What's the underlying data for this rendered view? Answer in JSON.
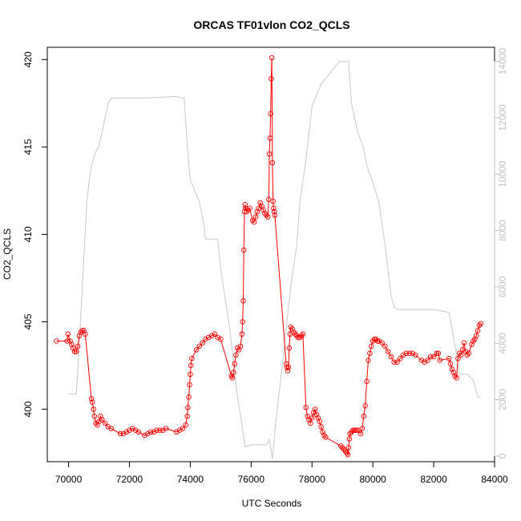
{
  "chart_data": {
    "type": "line",
    "title": "ORCAS TF01vlon CO2_QCLS",
    "xlabel": "UTC Seconds",
    "ylabel": "CO2_QCLS",
    "xlim": [
      69300,
      84000
    ],
    "ylim": [
      397,
      420.7
    ],
    "y2lim": [
      -200,
      14500
    ],
    "x_ticks": [
      70000,
      72000,
      74000,
      76000,
      78000,
      80000,
      82000,
      84000
    ],
    "y_ticks": [
      400,
      405,
      410,
      415,
      420
    ],
    "y2_ticks": [
      0,
      2000,
      4000,
      6000,
      8000,
      10000,
      12000,
      14000
    ],
    "grid": false,
    "colors": {
      "co2": "#ff0000",
      "altitude": "#c8c8c8",
      "axis": "#000000",
      "right_axis": "#c0c0c0"
    },
    "series": [
      {
        "role": "co2",
        "style": "line-with-circles",
        "axis": "left",
        "points": [
          [
            69600,
            403.9
          ],
          [
            69950,
            403.9
          ],
          [
            69980,
            404.3
          ],
          [
            70050,
            403.9
          ],
          [
            70100,
            403.7
          ],
          [
            70150,
            403.5
          ],
          [
            70200,
            403.3
          ],
          [
            70250,
            403.3
          ],
          [
            70300,
            403.6
          ],
          [
            70350,
            404.2
          ],
          [
            70400,
            404.4
          ],
          [
            70450,
            404.5
          ],
          [
            70500,
            404.5
          ],
          [
            70550,
            404.3
          ],
          [
            70750,
            400.6
          ],
          [
            70780,
            400.4
          ],
          [
            70820,
            400.0
          ],
          [
            70850,
            399.6
          ],
          [
            70900,
            399.2
          ],
          [
            70950,
            399.1
          ],
          [
            71000,
            399.3
          ],
          [
            71050,
            399.6
          ],
          [
            71100,
            399.4
          ],
          [
            71200,
            399.2
          ],
          [
            71300,
            399.0
          ],
          [
            71400,
            398.9
          ],
          [
            71700,
            398.6
          ],
          [
            71800,
            398.6
          ],
          [
            71900,
            398.7
          ],
          [
            72000,
            398.8
          ],
          [
            72100,
            398.9
          ],
          [
            72200,
            398.8
          ],
          [
            72300,
            398.7
          ],
          [
            72500,
            398.5
          ],
          [
            72600,
            398.6
          ],
          [
            72700,
            398.7
          ],
          [
            72800,
            398.7
          ],
          [
            72900,
            398.8
          ],
          [
            73000,
            398.8
          ],
          [
            73100,
            398.8
          ],
          [
            73200,
            398.9
          ],
          [
            73550,
            398.7
          ],
          [
            73650,
            398.8
          ],
          [
            73750,
            398.9
          ],
          [
            73850,
            399.1
          ],
          [
            73900,
            399.6
          ],
          [
            73920,
            400.1
          ],
          [
            73950,
            400.7
          ],
          [
            73980,
            401.4
          ],
          [
            74000,
            402.0
          ],
          [
            74020,
            402.5
          ],
          [
            74050,
            402.9
          ],
          [
            74200,
            403.4
          ],
          [
            74300,
            403.6
          ],
          [
            74400,
            403.8
          ],
          [
            74500,
            404.0
          ],
          [
            74600,
            404.1
          ],
          [
            74700,
            404.2
          ],
          [
            74800,
            404.3
          ],
          [
            74900,
            404.1
          ],
          [
            75000,
            404.0
          ],
          [
            75350,
            401.9
          ],
          [
            75380,
            401.8
          ],
          [
            75420,
            402.1
          ],
          [
            75460,
            402.6
          ],
          [
            75500,
            403.1
          ],
          [
            75550,
            403.5
          ],
          [
            75600,
            403.4
          ],
          [
            75650,
            403.6
          ],
          [
            75700,
            404.3
          ],
          [
            75720,
            405.0
          ],
          [
            75740,
            406.2
          ],
          [
            75760,
            409.1
          ],
          [
            75780,
            411.3
          ],
          [
            75800,
            411.7
          ],
          [
            75820,
            411.5
          ],
          [
            75850,
            411.3
          ],
          [
            75900,
            411.4
          ],
          [
            75950,
            411.5
          ],
          [
            76050,
            410.8
          ],
          [
            76100,
            410.7
          ],
          [
            76150,
            411.0
          ],
          [
            76200,
            411.3
          ],
          [
            76250,
            411.5
          ],
          [
            76300,
            411.8
          ],
          [
            76350,
            411.6
          ],
          [
            76400,
            411.4
          ],
          [
            76450,
            411.2
          ],
          [
            76500,
            411.1
          ],
          [
            76550,
            411.0
          ],
          [
            76580,
            412.0
          ],
          [
            76600,
            414.6
          ],
          [
            76620,
            415.5
          ],
          [
            76640,
            416.9
          ],
          [
            76660,
            418.9
          ],
          [
            76680,
            420.1
          ],
          [
            76700,
            414.1
          ],
          [
            76720,
            411.9
          ],
          [
            76740,
            411.5
          ],
          [
            76760,
            411.3
          ],
          [
            76780,
            411.1
          ],
          [
            77150,
            402.6
          ],
          [
            77180,
            402.4
          ],
          [
            77200,
            402.2
          ],
          [
            77230,
            402.4
          ],
          [
            77250,
            403.5
          ],
          [
            77280,
            404.3
          ],
          [
            77300,
            404.7
          ],
          [
            77350,
            404.6
          ],
          [
            77400,
            404.4
          ],
          [
            77450,
            404.3
          ],
          [
            77500,
            404.2
          ],
          [
            77550,
            404.1
          ],
          [
            77600,
            404.1
          ],
          [
            77650,
            404.2
          ],
          [
            77700,
            404.3
          ],
          [
            77800,
            400.1
          ],
          [
            77850,
            399.6
          ],
          [
            77900,
            399.4
          ],
          [
            77950,
            399.2
          ],
          [
            78000,
            399.5
          ],
          [
            78050,
            399.8
          ],
          [
            78100,
            400.0
          ],
          [
            78150,
            399.7
          ],
          [
            78200,
            399.5
          ],
          [
            78250,
            399.3
          ],
          [
            78300,
            399.0
          ],
          [
            78350,
            398.7
          ],
          [
            78400,
            398.5
          ],
          [
            78450,
            398.4
          ],
          [
            78950,
            397.9
          ],
          [
            79000,
            397.8
          ],
          [
            79050,
            397.7
          ],
          [
            79100,
            397.6
          ],
          [
            79150,
            397.5
          ],
          [
            79180,
            397.4
          ],
          [
            79200,
            397.8
          ],
          [
            79230,
            398.3
          ],
          [
            79250,
            398.6
          ],
          [
            79300,
            398.7
          ],
          [
            79350,
            398.8
          ],
          [
            79400,
            398.8
          ],
          [
            79450,
            398.8
          ],
          [
            79500,
            398.8
          ],
          [
            79600,
            398.6
          ],
          [
            79650,
            398.9
          ],
          [
            79700,
            399.6
          ],
          [
            79750,
            400.2
          ],
          [
            79800,
            401.6
          ],
          [
            79850,
            402.8
          ],
          [
            79900,
            403.2
          ],
          [
            79950,
            403.6
          ],
          [
            80000,
            403.9
          ],
          [
            80050,
            404.0
          ],
          [
            80100,
            404.0
          ],
          [
            80150,
            403.9
          ],
          [
            80200,
            403.9
          ],
          [
            80300,
            403.8
          ],
          [
            80400,
            403.6
          ],
          [
            80500,
            403.3
          ],
          [
            80600,
            403.0
          ],
          [
            80700,
            402.7
          ],
          [
            80800,
            402.7
          ],
          [
            80900,
            402.9
          ],
          [
            81000,
            403.1
          ],
          [
            81100,
            403.2
          ],
          [
            81200,
            403.2
          ],
          [
            81300,
            403.2
          ],
          [
            81400,
            403.1
          ],
          [
            81600,
            402.8
          ],
          [
            81700,
            402.7
          ],
          [
            81800,
            402.8
          ],
          [
            81900,
            403.0
          ],
          [
            82000,
            403.0
          ],
          [
            82100,
            403.2
          ],
          [
            82150,
            403.2
          ],
          [
            82200,
            402.8
          ],
          [
            82500,
            402.9
          ],
          [
            82550,
            402.6
          ],
          [
            82600,
            402.3
          ],
          [
            82650,
            402.1
          ],
          [
            82700,
            401.9
          ],
          [
            82750,
            401.8
          ],
          [
            82800,
            402.9
          ],
          [
            82850,
            403.2
          ],
          [
            82900,
            403.1
          ],
          [
            82950,
            403.4
          ],
          [
            83000,
            403.8
          ],
          [
            83050,
            403.3
          ],
          [
            83100,
            403.1
          ],
          [
            83150,
            403.2
          ],
          [
            83250,
            403.7
          ],
          [
            83300,
            403.9
          ],
          [
            83350,
            404.0
          ],
          [
            83400,
            404.2
          ],
          [
            83450,
            404.5
          ],
          [
            83500,
            404.8
          ],
          [
            83550,
            404.9
          ]
        ]
      },
      {
        "role": "altitude",
        "style": "line",
        "axis": "right",
        "points": [
          [
            70000,
            2200
          ],
          [
            70250,
            2200
          ],
          [
            70300,
            3000
          ],
          [
            70400,
            5000
          ],
          [
            70600,
            9000
          ],
          [
            70700,
            10000
          ],
          [
            70800,
            10500
          ],
          [
            70900,
            10800
          ],
          [
            71000,
            11000
          ],
          [
            71100,
            11500
          ],
          [
            71200,
            12000
          ],
          [
            71300,
            12500
          ],
          [
            71400,
            12700
          ],
          [
            72500,
            12700
          ],
          [
            73500,
            12750
          ],
          [
            73800,
            12700
          ],
          [
            73900,
            11000
          ],
          [
            74000,
            9800
          ],
          [
            74300,
            9000
          ],
          [
            74450,
            8200
          ],
          [
            74500,
            7700
          ],
          [
            74900,
            7700
          ],
          [
            75000,
            6600
          ],
          [
            75300,
            4500
          ],
          [
            75500,
            2500
          ],
          [
            75700,
            1100
          ],
          [
            75800,
            350
          ],
          [
            75900,
            350
          ],
          [
            76000,
            400
          ],
          [
            76300,
            400
          ],
          [
            76500,
            400
          ],
          [
            76600,
            600
          ],
          [
            76700,
            -100
          ],
          [
            76800,
            1100
          ],
          [
            77000,
            3000
          ],
          [
            77300,
            6000
          ],
          [
            77500,
            7500
          ],
          [
            77600,
            9000
          ],
          [
            77800,
            10500
          ],
          [
            78000,
            12400
          ],
          [
            78300,
            13200
          ],
          [
            78600,
            13600
          ],
          [
            78900,
            14000
          ],
          [
            79100,
            14000
          ],
          [
            79200,
            14000
          ],
          [
            79300,
            12500
          ],
          [
            79500,
            11500
          ],
          [
            79700,
            10900
          ],
          [
            79800,
            10300
          ],
          [
            80000,
            9700
          ],
          [
            80200,
            9000
          ],
          [
            80400,
            7500
          ],
          [
            80600,
            5700
          ],
          [
            80700,
            5300
          ],
          [
            80800,
            5200
          ],
          [
            81000,
            5200
          ],
          [
            81500,
            5200
          ],
          [
            82000,
            5200
          ],
          [
            82500,
            5100
          ],
          [
            82750,
            3600
          ],
          [
            82850,
            2900
          ],
          [
            83100,
            2900
          ],
          [
            83300,
            2700
          ],
          [
            83450,
            2100
          ],
          [
            83500,
            2100
          ],
          [
            83550,
            2100
          ]
        ]
      }
    ]
  }
}
